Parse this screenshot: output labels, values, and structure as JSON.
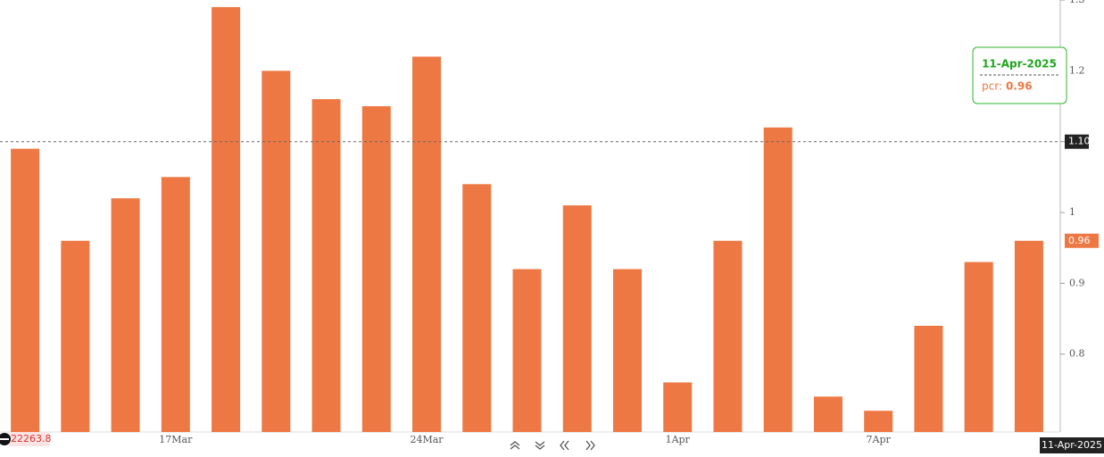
{
  "chart_data": {
    "type": "bar",
    "categories": [
      null,
      null,
      null,
      "17Mar",
      null,
      null,
      null,
      null,
      "24Mar",
      null,
      null,
      null,
      null,
      "1Apr",
      null,
      null,
      null,
      "7Apr",
      null,
      null,
      null
    ],
    "values": [
      1.09,
      0.96,
      1.02,
      1.05,
      1.29,
      1.2,
      1.16,
      1.15,
      1.22,
      1.04,
      0.92,
      1.01,
      0.92,
      0.76,
      0.96,
      1.12,
      0.74,
      0.72,
      0.84,
      0.93,
      0.96
    ],
    "color": "#ee7843",
    "ylim": [
      0.69,
      1.3
    ],
    "yticks": [
      0.8,
      0.9,
      1,
      1.1,
      1.2,
      1.3
    ],
    "grid": false,
    "crosshair": {
      "value": 1.1,
      "label": "1.10"
    },
    "tooltip": {
      "date": "11-Apr-2025",
      "label": "pcr:",
      "value": 0.96
    },
    "price_label": "22263.8"
  }
}
